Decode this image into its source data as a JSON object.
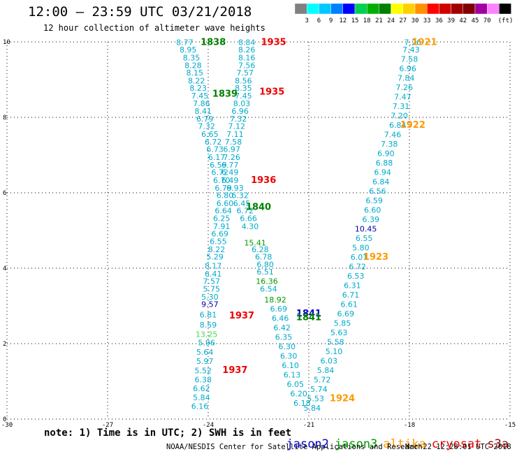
{
  "header": {
    "title": "12:00 – 23:59 UTC 03/21/2018",
    "subtitle": "12 hour collection of altimeter wave heights"
  },
  "color_scale": {
    "unit_label": "(ft)",
    "ticks": [
      "3",
      "6",
      "9",
      "12",
      "15",
      "18",
      "21",
      "24",
      "27",
      "30",
      "33",
      "36",
      "39",
      "42",
      "45",
      "70"
    ],
    "colors": [
      "#808080",
      "#00ffff",
      "#00c8ff",
      "#0080ff",
      "#0000ff",
      "#00d050",
      "#00b000",
      "#008000",
      "#ffff00",
      "#ffd000",
      "#ff9000",
      "#ff0000",
      "#d00000",
      "#a00000",
      "#800000",
      "#a000a0",
      "#ff80ff",
      "#000000"
    ]
  },
  "chart_data": {
    "type": "scatter",
    "title": "12:00 – 23:59 UTC 03/21/2018",
    "subtitle": "12 hour collection of altimeter wave heights",
    "xlabel": "",
    "ylabel": "",
    "xlim": [
      -30,
      -15
    ],
    "ylim": [
      0,
      10
    ],
    "x_ticks": [
      "-30",
      "-27",
      "-24",
      "-21",
      "-18",
      "-15"
    ],
    "x_tick_values": [
      -30,
      -27,
      -24,
      -21,
      -18,
      -15
    ],
    "y_ticks": [
      "0",
      "2",
      "4",
      "6",
      "8",
      "10"
    ],
    "y_tick_values": [
      0,
      2,
      4,
      6,
      8,
      10
    ],
    "grid": true,
    "legend_position": "bottom",
    "series": [
      {
        "name": "jason2",
        "color": "#0000cc"
      },
      {
        "name": "jason3",
        "color": "#009900"
      },
      {
        "name": "altika",
        "color": "#ff9900"
      },
      {
        "name": "cryosat",
        "color": "#ee0000"
      },
      {
        "name": "s3a",
        "color": "#990000"
      }
    ],
    "swh_labels": [
      {
        "x": -24.7,
        "y": 9.92,
        "text": "8.77",
        "color": "#00aacc"
      },
      {
        "x": -24.6,
        "y": 9.72,
        "text": "8.95",
        "color": "#00aacc"
      },
      {
        "x": -24.5,
        "y": 9.51,
        "text": "8.35",
        "color": "#00aacc"
      },
      {
        "x": -24.45,
        "y": 9.31,
        "text": "8.28",
        "color": "#00aacc"
      },
      {
        "x": -24.4,
        "y": 9.11,
        "text": "8.15",
        "color": "#00aacc"
      },
      {
        "x": -24.35,
        "y": 8.9,
        "text": "8.22",
        "color": "#00aacc"
      },
      {
        "x": -24.3,
        "y": 8.7,
        "text": "8.23",
        "color": "#00aacc"
      },
      {
        "x": -24.25,
        "y": 8.5,
        "text": "7.45",
        "color": "#00aacc"
      },
      {
        "x": -24.2,
        "y": 8.3,
        "text": "7.86",
        "color": "#00aacc"
      },
      {
        "x": -24.15,
        "y": 8.09,
        "text": "8.41",
        "color": "#00aacc"
      },
      {
        "x": -24.1,
        "y": 7.89,
        "text": "6.79",
        "color": "#00aacc"
      },
      {
        "x": -24.05,
        "y": 7.69,
        "text": "7.32",
        "color": "#00aacc"
      },
      {
        "x": -23.95,
        "y": 7.48,
        "text": "6.65",
        "color": "#00aacc"
      },
      {
        "x": -23.85,
        "y": 7.28,
        "text": "6.72",
        "color": "#00aacc"
      },
      {
        "x": -23.8,
        "y": 7.08,
        "text": "6.73",
        "color": "#00aacc"
      },
      {
        "x": -23.75,
        "y": 6.87,
        "text": "6.17",
        "color": "#00aacc"
      },
      {
        "x": -23.7,
        "y": 6.67,
        "text": "6.59",
        "color": "#00aacc"
      },
      {
        "x": -23.65,
        "y": 6.47,
        "text": "6.72",
        "color": "#00aacc"
      },
      {
        "x": -23.6,
        "y": 6.26,
        "text": "6.70",
        "color": "#00aacc"
      },
      {
        "x": -23.55,
        "y": 6.06,
        "text": "6.79",
        "color": "#00aacc"
      },
      {
        "x": -23.5,
        "y": 5.86,
        "text": "6.80",
        "color": "#00aacc"
      },
      {
        "x": -23.5,
        "y": 5.65,
        "text": "6.60",
        "color": "#00aacc"
      },
      {
        "x": -23.55,
        "y": 5.45,
        "text": "6.64",
        "color": "#00aacc"
      },
      {
        "x": -23.6,
        "y": 5.25,
        "text": "6.25",
        "color": "#00aacc"
      },
      {
        "x": -23.6,
        "y": 5.04,
        "text": "7.91",
        "color": "#00aacc"
      },
      {
        "x": -23.65,
        "y": 4.84,
        "text": "6.69",
        "color": "#00aacc"
      },
      {
        "x": -23.7,
        "y": 4.64,
        "text": "6.55",
        "color": "#00aacc"
      },
      {
        "x": -23.75,
        "y": 4.43,
        "text": "8.22",
        "color": "#00aacc"
      },
      {
        "x": -23.8,
        "y": 4.23,
        "text": "5.29",
        "color": "#00aacc"
      },
      {
        "x": -23.85,
        "y": 3.99,
        "text": "8.17",
        "color": "#00aacc"
      },
      {
        "x": -23.85,
        "y": 3.78,
        "text": "6.41",
        "color": "#00aacc"
      },
      {
        "x": -23.9,
        "y": 3.58,
        "text": "7.57",
        "color": "#00aacc"
      },
      {
        "x": -23.9,
        "y": 3.38,
        "text": "5.75",
        "color": "#00aacc"
      },
      {
        "x": -23.95,
        "y": 3.17,
        "text": "5.30",
        "color": "#00aacc"
      },
      {
        "x": -23.95,
        "y": 2.97,
        "text": "9.57",
        "color": "#0000aa"
      },
      {
        "x": -24.0,
        "y": 2.69,
        "text": "6.81",
        "color": "#00aacc"
      },
      {
        "x": -24.0,
        "y": 2.43,
        "text": "8.59",
        "color": "#00aacc"
      },
      {
        "x": -24.05,
        "y": 2.18,
        "text": "13.25",
        "color": "#44dd44"
      },
      {
        "x": -24.05,
        "y": 1.95,
        "text": "5.96",
        "color": "#00aacc"
      },
      {
        "x": -24.1,
        "y": 1.7,
        "text": "5.64",
        "color": "#00aacc"
      },
      {
        "x": -24.1,
        "y": 1.46,
        "text": "5.97",
        "color": "#00aacc"
      },
      {
        "x": -24.15,
        "y": 1.21,
        "text": "5.52",
        "color": "#00aacc"
      },
      {
        "x": -24.15,
        "y": 0.97,
        "text": "6.38",
        "color": "#00aacc"
      },
      {
        "x": -24.2,
        "y": 0.74,
        "text": "6.62",
        "color": "#00aacc"
      },
      {
        "x": -24.2,
        "y": 0.5,
        "text": "5.84",
        "color": "#00aacc"
      },
      {
        "x": -24.25,
        "y": 0.27,
        "text": "6.16",
        "color": "#00aacc"
      },
      {
        "x": -22.85,
        "y": 9.92,
        "text": "8.84",
        "color": "#00aacc"
      },
      {
        "x": -22.85,
        "y": 9.72,
        "text": "8.26",
        "color": "#00aacc"
      },
      {
        "x": -22.85,
        "y": 9.51,
        "text": "8.16",
        "color": "#00aacc"
      },
      {
        "x": -22.85,
        "y": 9.31,
        "text": "7.56",
        "color": "#00aacc"
      },
      {
        "x": -22.9,
        "y": 9.11,
        "text": "7.57",
        "color": "#00aacc"
      },
      {
        "x": -22.95,
        "y": 8.9,
        "text": "8.56",
        "color": "#00aacc"
      },
      {
        "x": -22.95,
        "y": 8.7,
        "text": "8.35",
        "color": "#00aacc"
      },
      {
        "x": -22.95,
        "y": 8.5,
        "text": "7.45",
        "color": "#00aacc"
      },
      {
        "x": -23.0,
        "y": 8.3,
        "text": "8.03",
        "color": "#00aacc"
      },
      {
        "x": -23.05,
        "y": 8.09,
        "text": "6.96",
        "color": "#00aacc"
      },
      {
        "x": -23.1,
        "y": 7.89,
        "text": "7.32",
        "color": "#00aacc"
      },
      {
        "x": -23.15,
        "y": 7.69,
        "text": "7.12",
        "color": "#00aacc"
      },
      {
        "x": -23.2,
        "y": 7.48,
        "text": "7.11",
        "color": "#00aacc"
      },
      {
        "x": -23.25,
        "y": 7.28,
        "text": "7.58",
        "color": "#00aacc"
      },
      {
        "x": -23.3,
        "y": 7.08,
        "text": "6.97",
        "color": "#00aacc"
      },
      {
        "x": -23.3,
        "y": 6.87,
        "text": "7.26",
        "color": "#00aacc"
      },
      {
        "x": -23.35,
        "y": 6.67,
        "text": "6.77",
        "color": "#00aacc"
      },
      {
        "x": -23.35,
        "y": 6.47,
        "text": "6.49",
        "color": "#00aacc"
      },
      {
        "x": -23.35,
        "y": 6.26,
        "text": "6.49",
        "color": "#00aacc"
      },
      {
        "x": -23.2,
        "y": 6.06,
        "text": "6.93",
        "color": "#00aacc"
      },
      {
        "x": -23.05,
        "y": 5.86,
        "text": "6.32",
        "color": "#00aacc"
      },
      {
        "x": -23.0,
        "y": 5.65,
        "text": "6.45",
        "color": "#00aacc"
      },
      {
        "x": -22.9,
        "y": 5.45,
        "text": "6.72",
        "color": "#00aacc"
      },
      {
        "x": -22.8,
        "y": 5.25,
        "text": "6.66",
        "color": "#00aacc"
      },
      {
        "x": -22.75,
        "y": 5.04,
        "text": "4.30",
        "color": "#00aacc"
      },
      {
        "x": -22.6,
        "y": 4.6,
        "text": "15.41",
        "color": "#009900"
      },
      {
        "x": -22.45,
        "y": 4.43,
        "text": "6.28",
        "color": "#00aacc"
      },
      {
        "x": -22.35,
        "y": 4.23,
        "text": "6.78",
        "color": "#00aacc"
      },
      {
        "x": -22.3,
        "y": 4.03,
        "text": "6.80",
        "color": "#00aacc"
      },
      {
        "x": -22.3,
        "y": 3.83,
        "text": "6.51",
        "color": "#00aacc"
      },
      {
        "x": -22.25,
        "y": 3.58,
        "text": "16.36",
        "color": "#009900"
      },
      {
        "x": -22.2,
        "y": 3.38,
        "text": "6.54",
        "color": "#00aacc"
      },
      {
        "x": -22.0,
        "y": 3.09,
        "text": "18.92",
        "color": "#009900"
      },
      {
        "x": -21.9,
        "y": 2.85,
        "text": "6.69",
        "color": "#00aacc"
      },
      {
        "x": -21.85,
        "y": 2.6,
        "text": "6.46",
        "color": "#00aacc"
      },
      {
        "x": -21.8,
        "y": 2.35,
        "text": "6.42",
        "color": "#00aacc"
      },
      {
        "x": -21.75,
        "y": 2.1,
        "text": "6.35",
        "color": "#00aacc"
      },
      {
        "x": -21.65,
        "y": 1.85,
        "text": "6.30",
        "color": "#00aacc"
      },
      {
        "x": -21.6,
        "y": 1.6,
        "text": "6.30",
        "color": "#00aacc"
      },
      {
        "x": -21.55,
        "y": 1.35,
        "text": "6.10",
        "color": "#00aacc"
      },
      {
        "x": -21.5,
        "y": 1.1,
        "text": "6.13",
        "color": "#00aacc"
      },
      {
        "x": -21.4,
        "y": 0.85,
        "text": "6.05",
        "color": "#00aacc"
      },
      {
        "x": -21.3,
        "y": 0.6,
        "text": "6.20",
        "color": "#00aacc"
      },
      {
        "x": -21.2,
        "y": 0.35,
        "text": "6.18",
        "color": "#00aacc"
      },
      {
        "x": -17.9,
        "y": 9.92,
        "text": "7.26",
        "color": "#00aacc"
      },
      {
        "x": -17.95,
        "y": 9.72,
        "text": "7.43",
        "color": "#00aacc"
      },
      {
        "x": -18.0,
        "y": 9.47,
        "text": "7.58",
        "color": "#00aacc"
      },
      {
        "x": -18.05,
        "y": 9.22,
        "text": "6.96",
        "color": "#00aacc"
      },
      {
        "x": -18.1,
        "y": 8.97,
        "text": "7.84",
        "color": "#00aacc"
      },
      {
        "x": -18.15,
        "y": 8.72,
        "text": "7.26",
        "color": "#00aacc"
      },
      {
        "x": -18.2,
        "y": 8.47,
        "text": "7.47",
        "color": "#00aacc"
      },
      {
        "x": -18.25,
        "y": 8.22,
        "text": "7.31",
        "color": "#00aacc"
      },
      {
        "x": -18.3,
        "y": 7.97,
        "text": "7.20",
        "color": "#00aacc"
      },
      {
        "x": -18.35,
        "y": 7.72,
        "text": "6.84",
        "color": "#00aacc"
      },
      {
        "x": -18.5,
        "y": 7.47,
        "text": "7.46",
        "color": "#00aacc"
      },
      {
        "x": -18.6,
        "y": 7.22,
        "text": "7.38",
        "color": "#00aacc"
      },
      {
        "x": -18.7,
        "y": 6.97,
        "text": "6.90",
        "color": "#00aacc"
      },
      {
        "x": -18.75,
        "y": 6.72,
        "text": "6.88",
        "color": "#00aacc"
      },
      {
        "x": -18.8,
        "y": 6.47,
        "text": "6.94",
        "color": "#00aacc"
      },
      {
        "x": -18.85,
        "y": 6.22,
        "text": "6.84",
        "color": "#00aacc"
      },
      {
        "x": -18.95,
        "y": 5.97,
        "text": "6.56",
        "color": "#00aacc"
      },
      {
        "x": -19.05,
        "y": 5.72,
        "text": "6.59",
        "color": "#00aacc"
      },
      {
        "x": -19.1,
        "y": 5.47,
        "text": "6.60",
        "color": "#00aacc"
      },
      {
        "x": -19.15,
        "y": 5.22,
        "text": "6.39",
        "color": "#00aacc"
      },
      {
        "x": -19.3,
        "y": 4.97,
        "text": "10.45",
        "color": "#0000aa"
      },
      {
        "x": -19.35,
        "y": 4.72,
        "text": "6.55",
        "color": "#00aacc"
      },
      {
        "x": -19.45,
        "y": 4.47,
        "text": "5.80",
        "color": "#00aacc"
      },
      {
        "x": -19.5,
        "y": 4.22,
        "text": "6.01",
        "color": "#00aacc"
      },
      {
        "x": -19.55,
        "y": 3.97,
        "text": "6.72",
        "color": "#00aacc"
      },
      {
        "x": -19.6,
        "y": 3.72,
        "text": "6.53",
        "color": "#00aacc"
      },
      {
        "x": -19.7,
        "y": 3.47,
        "text": "6.31",
        "color": "#00aacc"
      },
      {
        "x": -19.75,
        "y": 3.22,
        "text": "6.71",
        "color": "#00aacc"
      },
      {
        "x": -19.8,
        "y": 2.97,
        "text": "6.61",
        "color": "#00aacc"
      },
      {
        "x": -19.9,
        "y": 2.72,
        "text": "6.69",
        "color": "#00aacc"
      },
      {
        "x": -20.0,
        "y": 2.47,
        "text": "5.85",
        "color": "#00aacc"
      },
      {
        "x": -20.1,
        "y": 2.22,
        "text": "5.63",
        "color": "#00aacc"
      },
      {
        "x": -20.2,
        "y": 1.97,
        "text": "5.58",
        "color": "#00aacc"
      },
      {
        "x": -20.25,
        "y": 1.72,
        "text": "5.10",
        "color": "#00aacc"
      },
      {
        "x": -20.4,
        "y": 1.47,
        "text": "6.03",
        "color": "#00aacc"
      },
      {
        "x": -20.5,
        "y": 1.22,
        "text": "5.84",
        "color": "#00aacc"
      },
      {
        "x": -20.6,
        "y": 0.97,
        "text": "5.72",
        "color": "#00aacc"
      },
      {
        "x": -20.7,
        "y": 0.72,
        "text": "5.74",
        "color": "#00aacc"
      },
      {
        "x": -20.8,
        "y": 0.47,
        "text": "5.53",
        "color": "#00aacc"
      },
      {
        "x": -20.9,
        "y": 0.22,
        "text": "5.84",
        "color": "#00aacc"
      }
    ],
    "time_labels": [
      {
        "x": -23.85,
        "y": 9.92,
        "text": "1838",
        "color": "#008000"
      },
      {
        "x": -22.05,
        "y": 9.92,
        "text": "1935",
        "color": "#ee0000"
      },
      {
        "x": -17.55,
        "y": 9.92,
        "text": "1921",
        "color": "#ff9900"
      },
      {
        "x": -23.5,
        "y": 8.55,
        "text": "1839",
        "color": "#008000"
      },
      {
        "x": -22.1,
        "y": 8.6,
        "text": "1935",
        "color": "#ee0000"
      },
      {
        "x": -17.9,
        "y": 7.72,
        "text": "1922",
        "color": "#ff9900"
      },
      {
        "x": -22.35,
        "y": 6.26,
        "text": "1936",
        "color": "#ee0000"
      },
      {
        "x": -22.5,
        "y": 5.55,
        "text": "1840",
        "color": "#008000"
      },
      {
        "x": -19.0,
        "y": 4.22,
        "text": "1923",
        "color": "#ff9900"
      },
      {
        "x": -21.0,
        "y": 2.72,
        "text": "1841",
        "color": "#0000cc"
      },
      {
        "x": -21.0,
        "y": 2.62,
        "text": "1841",
        "color": "#008000"
      },
      {
        "x": -23.0,
        "y": 2.67,
        "text": "1937",
        "color": "#ee0000"
      },
      {
        "x": -23.2,
        "y": 1.22,
        "text": "1937",
        "color": "#ee0000"
      },
      {
        "x": -20.0,
        "y": 0.47,
        "text": "1924",
        "color": "#ff9900"
      }
    ]
  },
  "footer": {
    "note": "note: 1) Time is in UTC; 2) SWH is in feet",
    "credit": "NOAA/NESDIS Center for Satellite Applications and Research",
    "generated": "Mar 22 12:28:01 UTC 2018"
  }
}
